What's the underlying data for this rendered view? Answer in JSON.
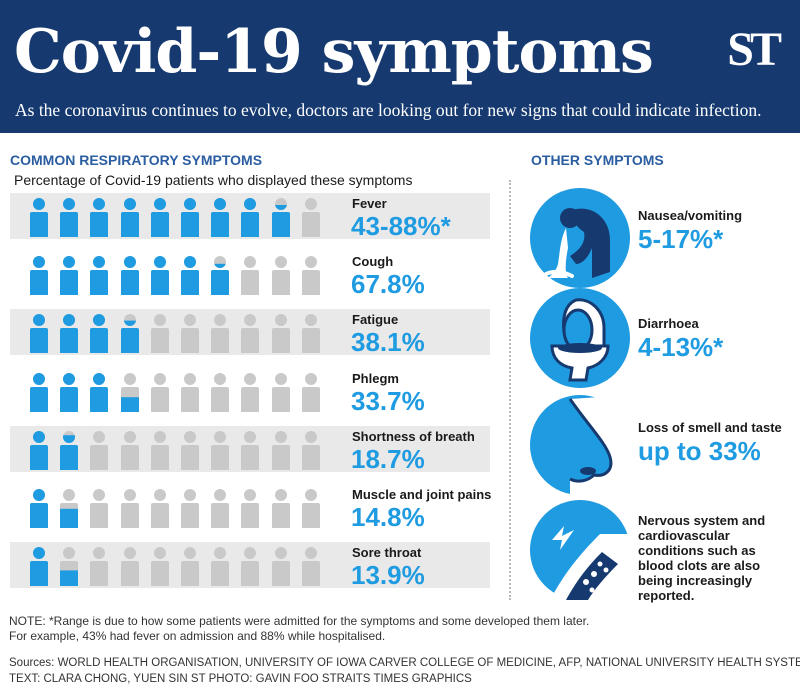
{
  "header": {
    "title": "Covid-19 symptoms",
    "logo": "ST",
    "subtitle": "As the coronavirus continues to evolve, doctors are looking out for new signs that could indicate infection."
  },
  "common": {
    "heading": "COMMON RESPIRATORY SYMPTOMS",
    "subheading": "Percentage of Covid-19 patients who displayed these symptoms"
  },
  "chart_data": {
    "type": "pictogram",
    "title": "COMMON RESPIRATORY SYMPTOMS",
    "subtitle": "Percentage of Covid-19 patients who displayed these symptoms",
    "icons_per_row": 10,
    "unit": "%",
    "colors": {
      "filled": "#1f9be1",
      "empty": "#c9c9c9"
    },
    "series": [
      {
        "name": "Fever",
        "display": "43-88%*",
        "value": 88
      },
      {
        "name": "Cough",
        "display": "67.8%",
        "value": 67.8
      },
      {
        "name": "Fatigue",
        "display": "38.1%",
        "value": 38.1
      },
      {
        "name": "Phlegm",
        "display": "33.7%",
        "value": 33.7
      },
      {
        "name": "Shortness of breath",
        "display": "18.7%",
        "value": 18.7
      },
      {
        "name": "Muscle and joint pains",
        "display": "14.8%",
        "value": 14.8
      },
      {
        "name": "Sore throat",
        "display": "13.9%",
        "value": 13.9
      }
    ]
  },
  "other": {
    "heading": "OTHER SYMPTOMS",
    "items": [
      {
        "label": "Nausea/vomiting",
        "value": "5-17%*",
        "icon": "vomiting-icon"
      },
      {
        "label": "Diarrhoea",
        "value": "4-13%*",
        "icon": "toilet-icon"
      },
      {
        "label": "Loss of smell and taste",
        "value": "up to 33%",
        "icon": "nose-icon"
      },
      {
        "label": "Nervous system and cardiovascular conditions such as blood clots are also being increasingly reported.",
        "icon": "blood-vessel-icon"
      }
    ]
  },
  "footer": {
    "note_line1": "NOTE: *Range is due to how some patients were admitted for the symptoms and some developed them later.",
    "note_line2": "For example, 43% had fever on admission and 88% while hospitalised.",
    "sources": "Sources: WORLD HEALTH ORGANISATION, UNIVERSITY OF IOWA CARVER COLLEGE OF MEDICINE, AFP, NATIONAL UNIVERSITY HEALTH SYSTEM",
    "credits": "TEXT: CLARA CHONG, YUEN SIN   ST PHOTO: GAVIN FOO   STRAITS TIMES GRAPHICS"
  },
  "colors": {
    "header_bg": "#163a70",
    "accent": "#1f9be1",
    "heading_blue": "#2b5da1",
    "row_shade": "#e9e9e9",
    "icon_grey": "#c9c9c9"
  }
}
